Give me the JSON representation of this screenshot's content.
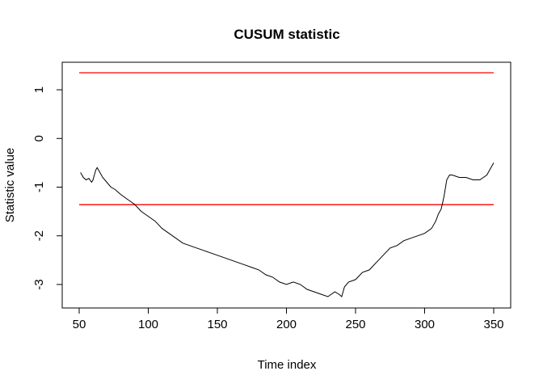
{
  "chart_data": {
    "type": "line",
    "title": "CUSUM statistic",
    "xlabel": "Time index",
    "ylabel": "Statistic value",
    "xlim": [
      50,
      350
    ],
    "ylim": [
      -3.3,
      1.35
    ],
    "xticks": [
      50,
      100,
      150,
      200,
      250,
      300,
      350
    ],
    "yticks": [
      1,
      0,
      -1,
      -2,
      -3
    ],
    "xtick_labels": [
      "50",
      "100",
      "150",
      "200",
      "250",
      "300",
      "350"
    ],
    "ytick_labels": [
      "1",
      "0",
      "-1",
      "-2",
      "-3"
    ],
    "grid": false,
    "legend": "none",
    "series": [
      {
        "color": "#000000",
        "x": [
          51,
          53,
          55,
          57,
          59,
          60,
          62,
          63,
          65,
          67,
          70,
          73,
          76,
          80,
          85,
          90,
          95,
          100,
          105,
          110,
          115,
          120,
          125,
          130,
          135,
          140,
          145,
          150,
          155,
          160,
          165,
          170,
          175,
          180,
          185,
          190,
          195,
          200,
          205,
          210,
          215,
          220,
          225,
          230,
          235,
          238,
          240,
          242,
          245,
          250,
          255,
          260,
          265,
          270,
          275,
          280,
          285,
          290,
          295,
          300,
          305,
          308,
          310,
          312,
          314,
          316,
          318,
          320,
          325,
          330,
          335,
          340,
          345,
          348,
          350
        ],
        "y": [
          -0.7,
          -0.8,
          -0.85,
          -0.82,
          -0.9,
          -0.85,
          -0.65,
          -0.6,
          -0.7,
          -0.8,
          -0.9,
          -1.0,
          -1.05,
          -1.15,
          -1.25,
          -1.35,
          -1.5,
          -1.6,
          -1.7,
          -1.85,
          -1.95,
          -2.05,
          -2.15,
          -2.2,
          -2.25,
          -2.3,
          -2.35,
          -2.4,
          -2.45,
          -2.5,
          -2.55,
          -2.6,
          -2.65,
          -2.7,
          -2.8,
          -2.85,
          -2.95,
          -3.0,
          -2.95,
          -3.0,
          -3.1,
          -3.15,
          -3.2,
          -3.25,
          -3.15,
          -3.2,
          -3.25,
          -3.05,
          -2.95,
          -2.9,
          -2.75,
          -2.7,
          -2.55,
          -2.4,
          -2.25,
          -2.2,
          -2.1,
          -2.05,
          -2.0,
          -1.95,
          -1.85,
          -1.7,
          -1.55,
          -1.45,
          -1.2,
          -0.85,
          -0.75,
          -0.75,
          -0.8,
          -0.8,
          -0.85,
          -0.85,
          -0.75,
          -0.6,
          -0.5
        ]
      }
    ],
    "reference_lines": [
      {
        "y": 1.35,
        "color": "#ff0000"
      },
      {
        "y": -1.36,
        "color": "#ff0000"
      }
    ]
  }
}
